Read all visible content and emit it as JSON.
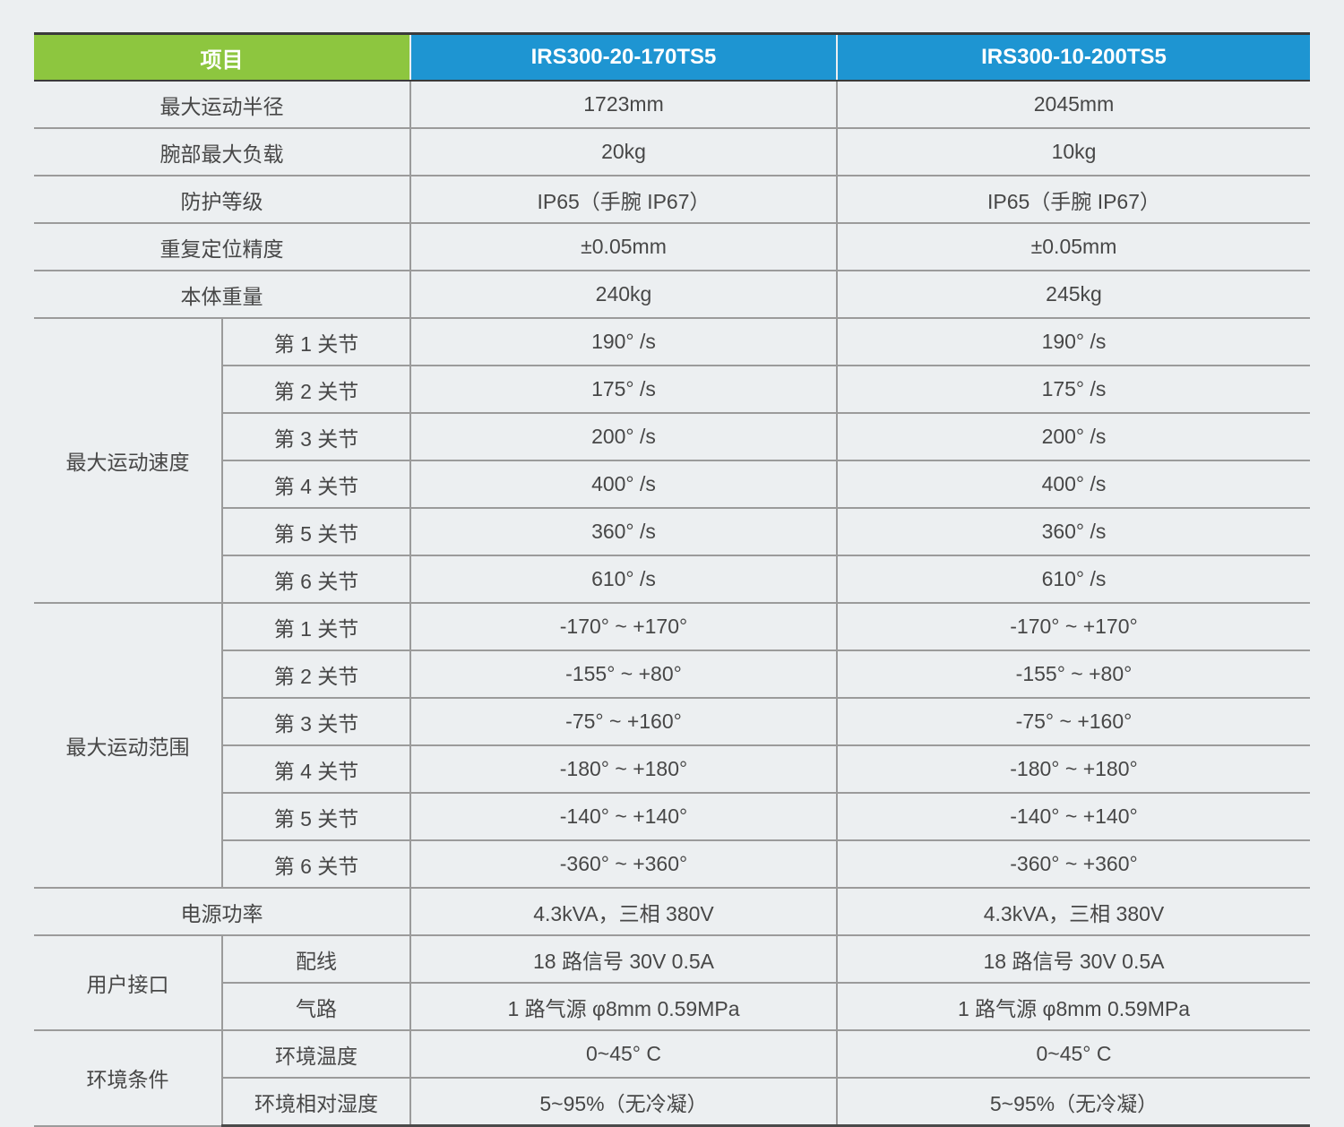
{
  "colors": {
    "page_background": "#ECEFF1",
    "header_green": "#8DC63F",
    "header_blue": "#1E95D2",
    "grid_line": "#9B9B9B",
    "outer_border": "#3A3A3A",
    "text": "#474747",
    "header_text": "#FFFFFF"
  },
  "table": {
    "header": {
      "item_label": "项目",
      "columns": [
        "IRS300-20-170TS5",
        "IRS300-10-200TS5"
      ]
    },
    "rows": [
      {
        "label": "最大运动半径",
        "values": [
          "1723mm",
          "2045mm"
        ]
      },
      {
        "label": "腕部最大负载",
        "values": [
          "20kg",
          "10kg"
        ]
      },
      {
        "label": "防护等级",
        "values": [
          "IP65（手腕 IP67）",
          "IP65（手腕 IP67）"
        ]
      },
      {
        "label": "重复定位精度",
        "values": [
          "±0.05mm",
          "±0.05mm"
        ]
      },
      {
        "label": "本体重量",
        "values": [
          "240kg",
          "245kg"
        ]
      },
      {
        "label": "最大运动速度",
        "subrows": [
          {
            "sublabel": "第 1 关节",
            "values": [
              "190° /s",
              "190° /s"
            ]
          },
          {
            "sublabel": "第 2 关节",
            "values": [
              "175° /s",
              "175° /s"
            ]
          },
          {
            "sublabel": "第 3 关节",
            "values": [
              "200° /s",
              "200° /s"
            ]
          },
          {
            "sublabel": "第 4 关节",
            "values": [
              "400° /s",
              "400° /s"
            ]
          },
          {
            "sublabel": "第 5 关节",
            "values": [
              "360° /s",
              "360° /s"
            ]
          },
          {
            "sublabel": "第 6 关节",
            "values": [
              "610° /s",
              "610° /s"
            ]
          }
        ]
      },
      {
        "label": "最大运动范围",
        "subrows": [
          {
            "sublabel": "第 1 关节",
            "values": [
              "-170° ~ +170°",
              "-170° ~ +170°"
            ]
          },
          {
            "sublabel": "第 2 关节",
            "values": [
              "-155° ~ +80°",
              "-155° ~ +80°"
            ]
          },
          {
            "sublabel": "第 3 关节",
            "values": [
              "-75° ~ +160°",
              "-75° ~ +160°"
            ]
          },
          {
            "sublabel": "第 4 关节",
            "values": [
              "-180° ~ +180°",
              "-180° ~ +180°"
            ]
          },
          {
            "sublabel": "第 5 关节",
            "values": [
              "-140° ~ +140°",
              "-140° ~ +140°"
            ]
          },
          {
            "sublabel": "第 6 关节",
            "values": [
              "-360° ~ +360°",
              "-360° ~ +360°"
            ]
          }
        ]
      },
      {
        "label": "电源功率",
        "values": [
          "4.3kVA，三相 380V",
          "4.3kVA，三相 380V"
        ]
      },
      {
        "label": "用户接口",
        "subrows": [
          {
            "sublabel": "配线",
            "values": [
              "18 路信号 30V 0.5A",
              "18 路信号 30V 0.5A"
            ]
          },
          {
            "sublabel": "气路",
            "values": [
              "1 路气源 φ8mm 0.59MPa",
              "1 路气源 φ8mm 0.59MPa"
            ]
          }
        ]
      },
      {
        "label": "环境条件",
        "subrows": [
          {
            "sublabel": "环境温度",
            "values": [
              "0~45° C",
              "0~45° C"
            ]
          },
          {
            "sublabel": "环境相对湿度",
            "values": [
              "5~95%（无冷凝）",
              "5~95%（无冷凝）"
            ]
          }
        ]
      }
    ]
  }
}
